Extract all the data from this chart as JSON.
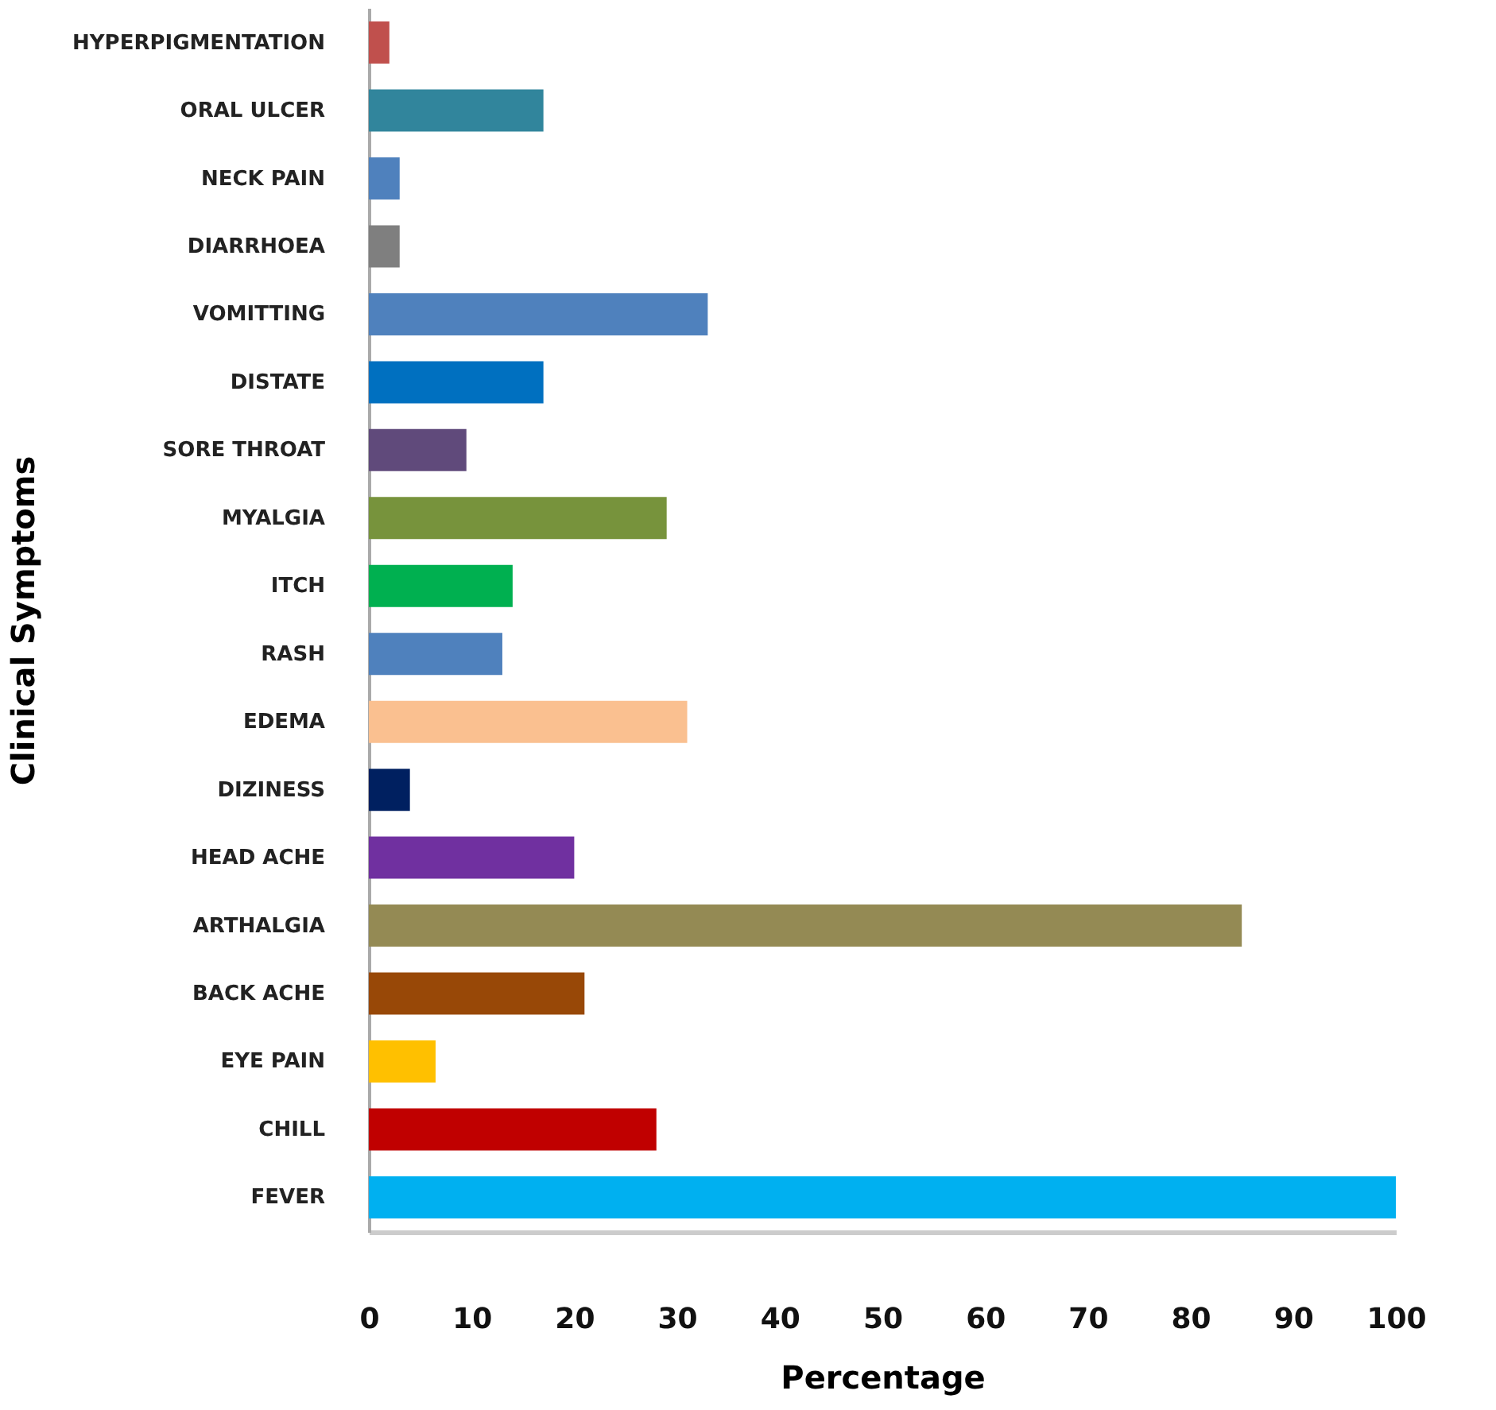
{
  "chart_data": {
    "type": "bar",
    "orientation": "horizontal",
    "xlabel": "Percentage",
    "ylabel": "Clinical Symptoms",
    "categories": [
      "HYPERPIGMENTATION",
      "ORAL ULCER",
      "NECK PAIN",
      "DIARRHOEA",
      "VOMITTING",
      "DISTATE",
      "SORE THROAT",
      "MYALGIA",
      "ITCH",
      "RASH",
      "EDEMA",
      "DIZINESS",
      "HEAD ACHE",
      "ARTHALGIA",
      "BACK ACHE",
      "EYE PAIN",
      "CHILL",
      "FEVER"
    ],
    "values": [
      2,
      17,
      3,
      3,
      33,
      17,
      9.5,
      29,
      14,
      13,
      31,
      4,
      20,
      85,
      21,
      6.5,
      28,
      100
    ],
    "colors": [
      "#c0504d",
      "#31859c",
      "#4f81bd",
      "#7f7f7f",
      "#4f81bd",
      "#0070c0",
      "#604a7b",
      "#77933c",
      "#00b050",
      "#4f81bd",
      "#fac090",
      "#002060",
      "#7030a0",
      "#948a54",
      "#984807",
      "#ffc000",
      "#c00000",
      "#00b0f0"
    ],
    "xlim": [
      0,
      100
    ],
    "xticks": [
      0,
      10,
      20,
      30,
      40,
      50,
      60,
      70,
      80,
      90,
      100
    ],
    "grid": false
  }
}
